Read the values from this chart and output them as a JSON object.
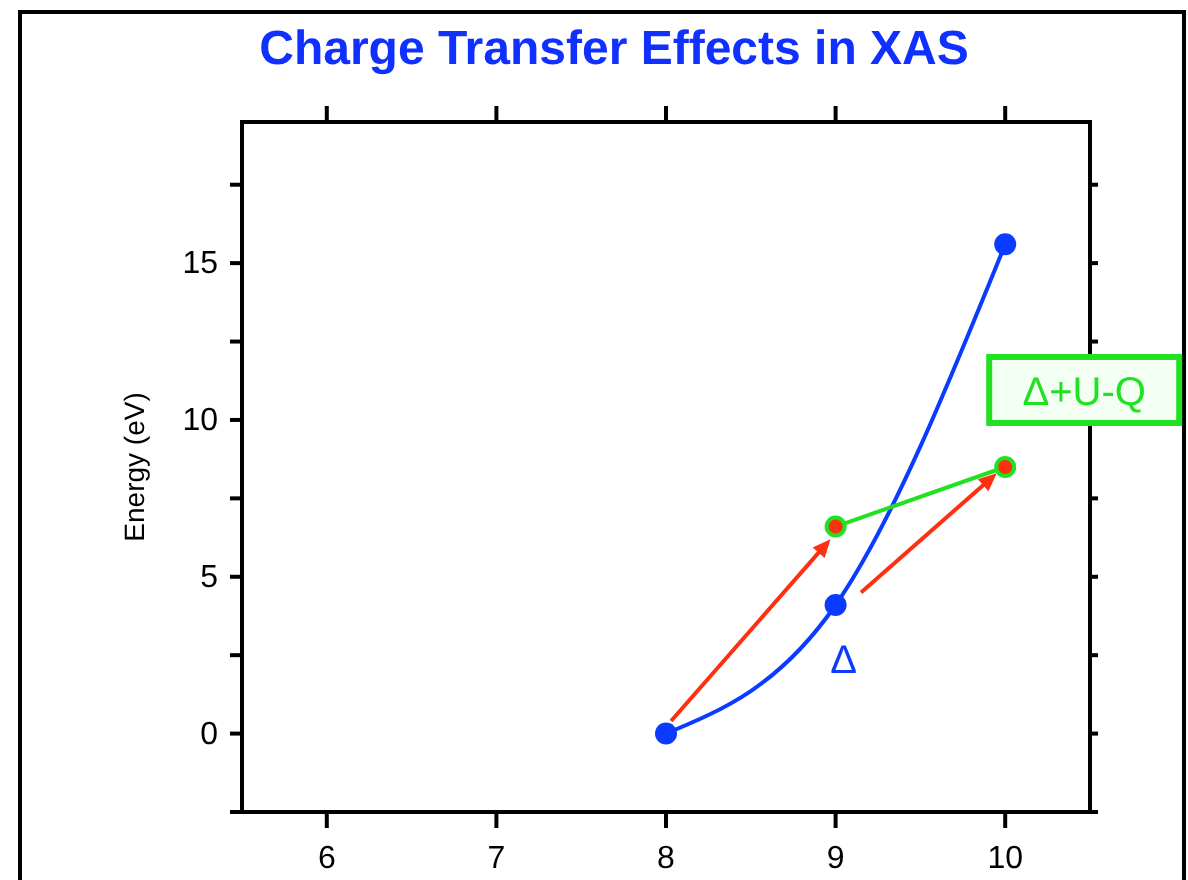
{
  "chart_data": {
    "type": "line",
    "title": "Charge Transfer Effects in XAS",
    "ylabel": "Energy (eV)",
    "xlim": [
      5.5,
      10.5
    ],
    "xticks": [
      6,
      7,
      8,
      9,
      10
    ],
    "ylim": [
      -2.5,
      19.5
    ],
    "yticks": [
      {
        "value": -2.5,
        "label": null
      },
      0,
      {
        "value": 2.5,
        "label": null
      },
      5,
      {
        "value": 7.5,
        "label": null
      },
      10,
      {
        "value": 12.5,
        "label": null
      },
      15,
      {
        "value": 17.5,
        "label": null
      }
    ],
    "marker": "circle",
    "grid": false,
    "series": [
      {
        "name": "Δ",
        "color": "#0b3bff",
        "x": [
          8,
          9,
          10
        ],
        "values": [
          0,
          4.1,
          15.6
        ]
      },
      {
        "name": "Δ+U-Q",
        "color": "#22e022",
        "x": [
          9,
          10
        ],
        "values": [
          6.6,
          8.5
        ]
      }
    ]
  }
}
